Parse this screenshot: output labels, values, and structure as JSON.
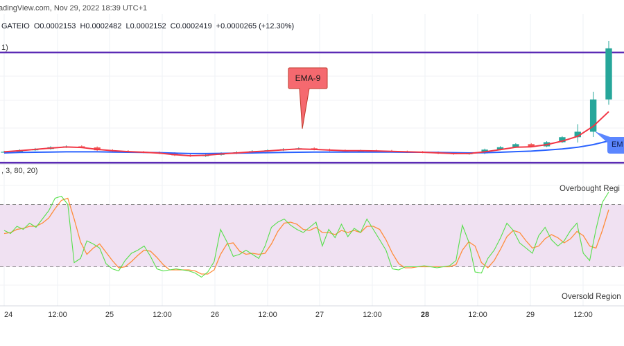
{
  "header": {
    "source_line": "adingView.com, Nov 29, 2022 18:39 UTC+1",
    "symbol_exchange": "GATEIO",
    "ohlc": {
      "open": "O0.0002153",
      "high": "H0.0002482",
      "low": "L0.0002152",
      "close": "C0.0002419",
      "change": "+0.0000265 (+12.30%)"
    },
    "price_indicator_fragment": "1)"
  },
  "colors": {
    "ema9": "#f23645",
    "ema_slow": "#2962ff",
    "range_lines": "#5b2bb5",
    "candle_up": "#26a69a",
    "candle_down": "#ef5350",
    "stoch_k": "#55e04a",
    "stoch_d": "#ff8c3a",
    "stoch_band": "#f0e1f2",
    "callout_bg": "#f5696f"
  },
  "annotations": {
    "ema9_callout": "EMA-9",
    "ema_slow_callout": "EM"
  },
  "oscillator": {
    "params_label": ", 3, 80, 20)",
    "overbought_label": "Overbought Regi",
    "oversold_label": "Oversold Region"
  },
  "chart_data": [
    {
      "type": "candlestick",
      "title": "",
      "symbol": "GATEIO",
      "indicators": [
        "EMA-9",
        "EMA (slow)"
      ],
      "x_ticks": [
        "24",
        "12:00",
        "25",
        "12:00",
        "26",
        "12:00",
        "27",
        "12:00",
        "28",
        "12:00",
        "29",
        "12:00"
      ],
      "close": [
        0.0001945,
        0.0001952,
        0.0001958,
        0.0001966,
        0.000197,
        0.0001965,
        0.0001952,
        0.0001948,
        0.0001944,
        0.0001942,
        0.0001938,
        0.0001929,
        0.0001925,
        0.0001931,
        0.0001938,
        0.0001943,
        0.0001948,
        0.0001952,
        0.0001957,
        0.0001961,
        0.0001955,
        0.0001951,
        0.0001949,
        0.000195,
        0.0001949,
        0.0001946,
        0.0001944,
        0.0001942,
        0.0001938,
        0.0001935,
        0.0001938,
        0.0001955,
        0.0001966,
        0.000198,
        0.000197,
        0.0001989,
        0.0002012,
        0.0002037,
        0.0002185,
        0.0002419
      ],
      "ema9": [
        0.0001945,
        0.000195,
        0.0001956,
        0.0001962,
        0.0001967,
        0.0001965,
        0.0001956,
        0.000195,
        0.0001946,
        0.0001943,
        0.0001939,
        0.0001932,
        0.0001927,
        0.0001929,
        0.0001935,
        0.000194,
        0.0001945,
        0.0001949,
        0.0001954,
        0.0001958,
        0.0001956,
        0.0001953,
        0.000195,
        0.000195,
        0.0001949,
        0.0001947,
        0.0001945,
        0.0001943,
        0.000194,
        0.0001937,
        0.0001937,
        0.0001945,
        0.0001955,
        0.0001966,
        0.0001968,
        0.0001978,
        0.0001994,
        0.0002016,
        0.0002062,
        0.0002129
      ],
      "ema_slow": [
        0.000194,
        0.0001942,
        0.0001943,
        0.0001944,
        0.0001945,
        0.0001945,
        0.0001945,
        0.0001944,
        0.0001943,
        0.0001942,
        0.0001941,
        0.0001939,
        0.0001937,
        0.0001937,
        0.0001938,
        0.0001939,
        0.000194,
        0.0001941,
        0.0001942,
        0.0001943,
        0.0001944,
        0.0001944,
        0.0001944,
        0.0001944,
        0.0001944,
        0.0001944,
        0.0001943,
        0.0001943,
        0.0001942,
        0.0001941,
        0.000194,
        0.0001941,
        0.0001943,
        0.0001946,
        0.0001948,
        0.0001953,
        0.0001958,
        0.0001966,
        0.0001978,
        0.0001995
      ],
      "price_range": [
        0.0001905,
        0.0002482
      ],
      "horizontal_lines": [
        0.00024,
        0.0001895
      ],
      "grid": true
    },
    {
      "type": "line",
      "title": "",
      "params": ", 3, 80, 20)",
      "x_ticks": [
        "24",
        "12:00",
        "25",
        "12:00",
        "26",
        "12:00",
        "27",
        "12:00",
        "28",
        "12:00",
        "29",
        "12:00"
      ],
      "series": [
        {
          "values": [
            55,
            52,
            59,
            56,
            62,
            58,
            66,
            74,
            86,
            88,
            80,
            24,
            28,
            45,
            42,
            38,
            23,
            18,
            16,
            26,
            33,
            36,
            40,
            30,
            18,
            16,
            17,
            18,
            17,
            16,
            14,
            10,
            15,
            25,
            56,
            44,
            30,
            32,
            36,
            32,
            28,
            40,
            58,
            63,
            66,
            60,
            56,
            53,
            58,
            63,
            40,
            56,
            48,
            61,
            49,
            57,
            53,
            66,
            56,
            46,
            36,
            18,
            17,
            20,
            20,
            20,
            21,
            20,
            19,
            20,
            21,
            26,
            60,
            44,
            15,
            14,
            28,
            36,
            48,
            62,
            55,
            43,
            38,
            33,
            50,
            58,
            46,
            40,
            45,
            55,
            62,
            33,
            26,
            56,
            82,
            92
          ]
        },
        {
          "values": [
            52,
            53,
            56,
            57,
            59,
            59,
            62,
            67,
            76,
            84,
            86,
            66,
            44,
            32,
            38,
            42,
            34,
            26,
            19,
            20,
            25,
            31,
            36,
            35,
            29,
            22,
            17,
            17,
            17,
            17,
            16,
            13,
            13,
            17,
            32,
            42,
            43,
            35,
            32,
            33,
            32,
            33,
            42,
            54,
            62,
            63,
            61,
            56,
            55,
            58,
            53,
            53,
            51,
            55,
            53,
            55,
            53,
            59,
            59,
            56,
            46,
            33,
            23,
            19,
            19,
            20,
            20,
            20,
            20,
            20,
            20,
            22,
            36,
            44,
            40,
            24,
            19,
            26,
            37,
            49,
            55,
            53,
            45,
            38,
            40,
            47,
            51,
            48,
            43,
            47,
            54,
            50,
            40,
            38,
            55,
            75
          ]
        }
      ],
      "ylim": [
        -13,
        115
      ],
      "reference_lines": [
        {
          "label": "Overbought Regi",
          "y": 80
        },
        {
          "label": "Oversold Region",
          "y": 20
        }
      ],
      "grid": true
    }
  ]
}
